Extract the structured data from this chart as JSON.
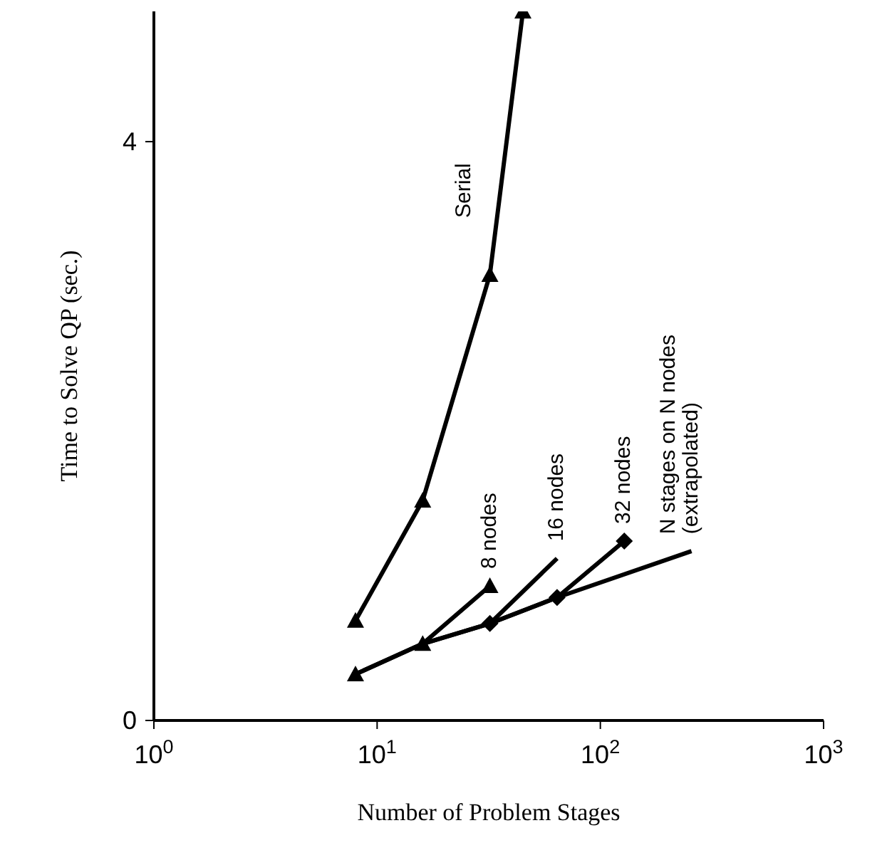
{
  "chart_data": {
    "type": "line",
    "xlabel": "Number of Problem Stages",
    "ylabel": "Time to Solve QP (sec.)",
    "log": "x",
    "xlim": [
      1,
      1000
    ],
    "xticks": [
      {
        "value": 1,
        "label": "10$^{0}$"
      },
      {
        "value": 10,
        "label": "10$^{1}$"
      },
      {
        "value": 100,
        "label": "10$^{2}$"
      },
      {
        "value": 1000,
        "label": "10$^{3}$"
      }
    ],
    "ylim": [
      0,
      4.9
    ],
    "yticks": [
      0,
      4
    ],
    "grid": false,
    "legend": false,
    "line_style": "solid",
    "series": [
      {
        "name": "Serial",
        "color": "#000000",
        "marker": "triangle",
        "x": [
          8,
          16,
          32,
          45
        ],
        "values": [
          0.69,
          1.52,
          3.08,
          4.9
        ]
      },
      {
        "name": "8 nodes",
        "color": "#000000",
        "marker": "triangle",
        "x": [
          8,
          16,
          32
        ],
        "values": [
          0.32,
          0.53,
          0.93
        ]
      },
      {
        "name": "16 nodes",
        "color": "#000000",
        "marker": "none",
        "x": [
          16,
          32,
          64
        ],
        "values": [
          0.53,
          0.67,
          1.12
        ]
      },
      {
        "name": "32 nodes",
        "color": "#000000",
        "marker": "diamond",
        "x": [
          32,
          64,
          128
        ],
        "values": [
          0.67,
          0.85,
          1.24
        ]
      },
      {
        "name": "N stages on N nodes (extrapolated)",
        "color": "#000000",
        "marker": "none",
        "x": [
          8,
          16,
          32,
          64,
          256
        ],
        "values": [
          0.32,
          0.53,
          0.67,
          0.85,
          1.17
        ]
      }
    ]
  }
}
